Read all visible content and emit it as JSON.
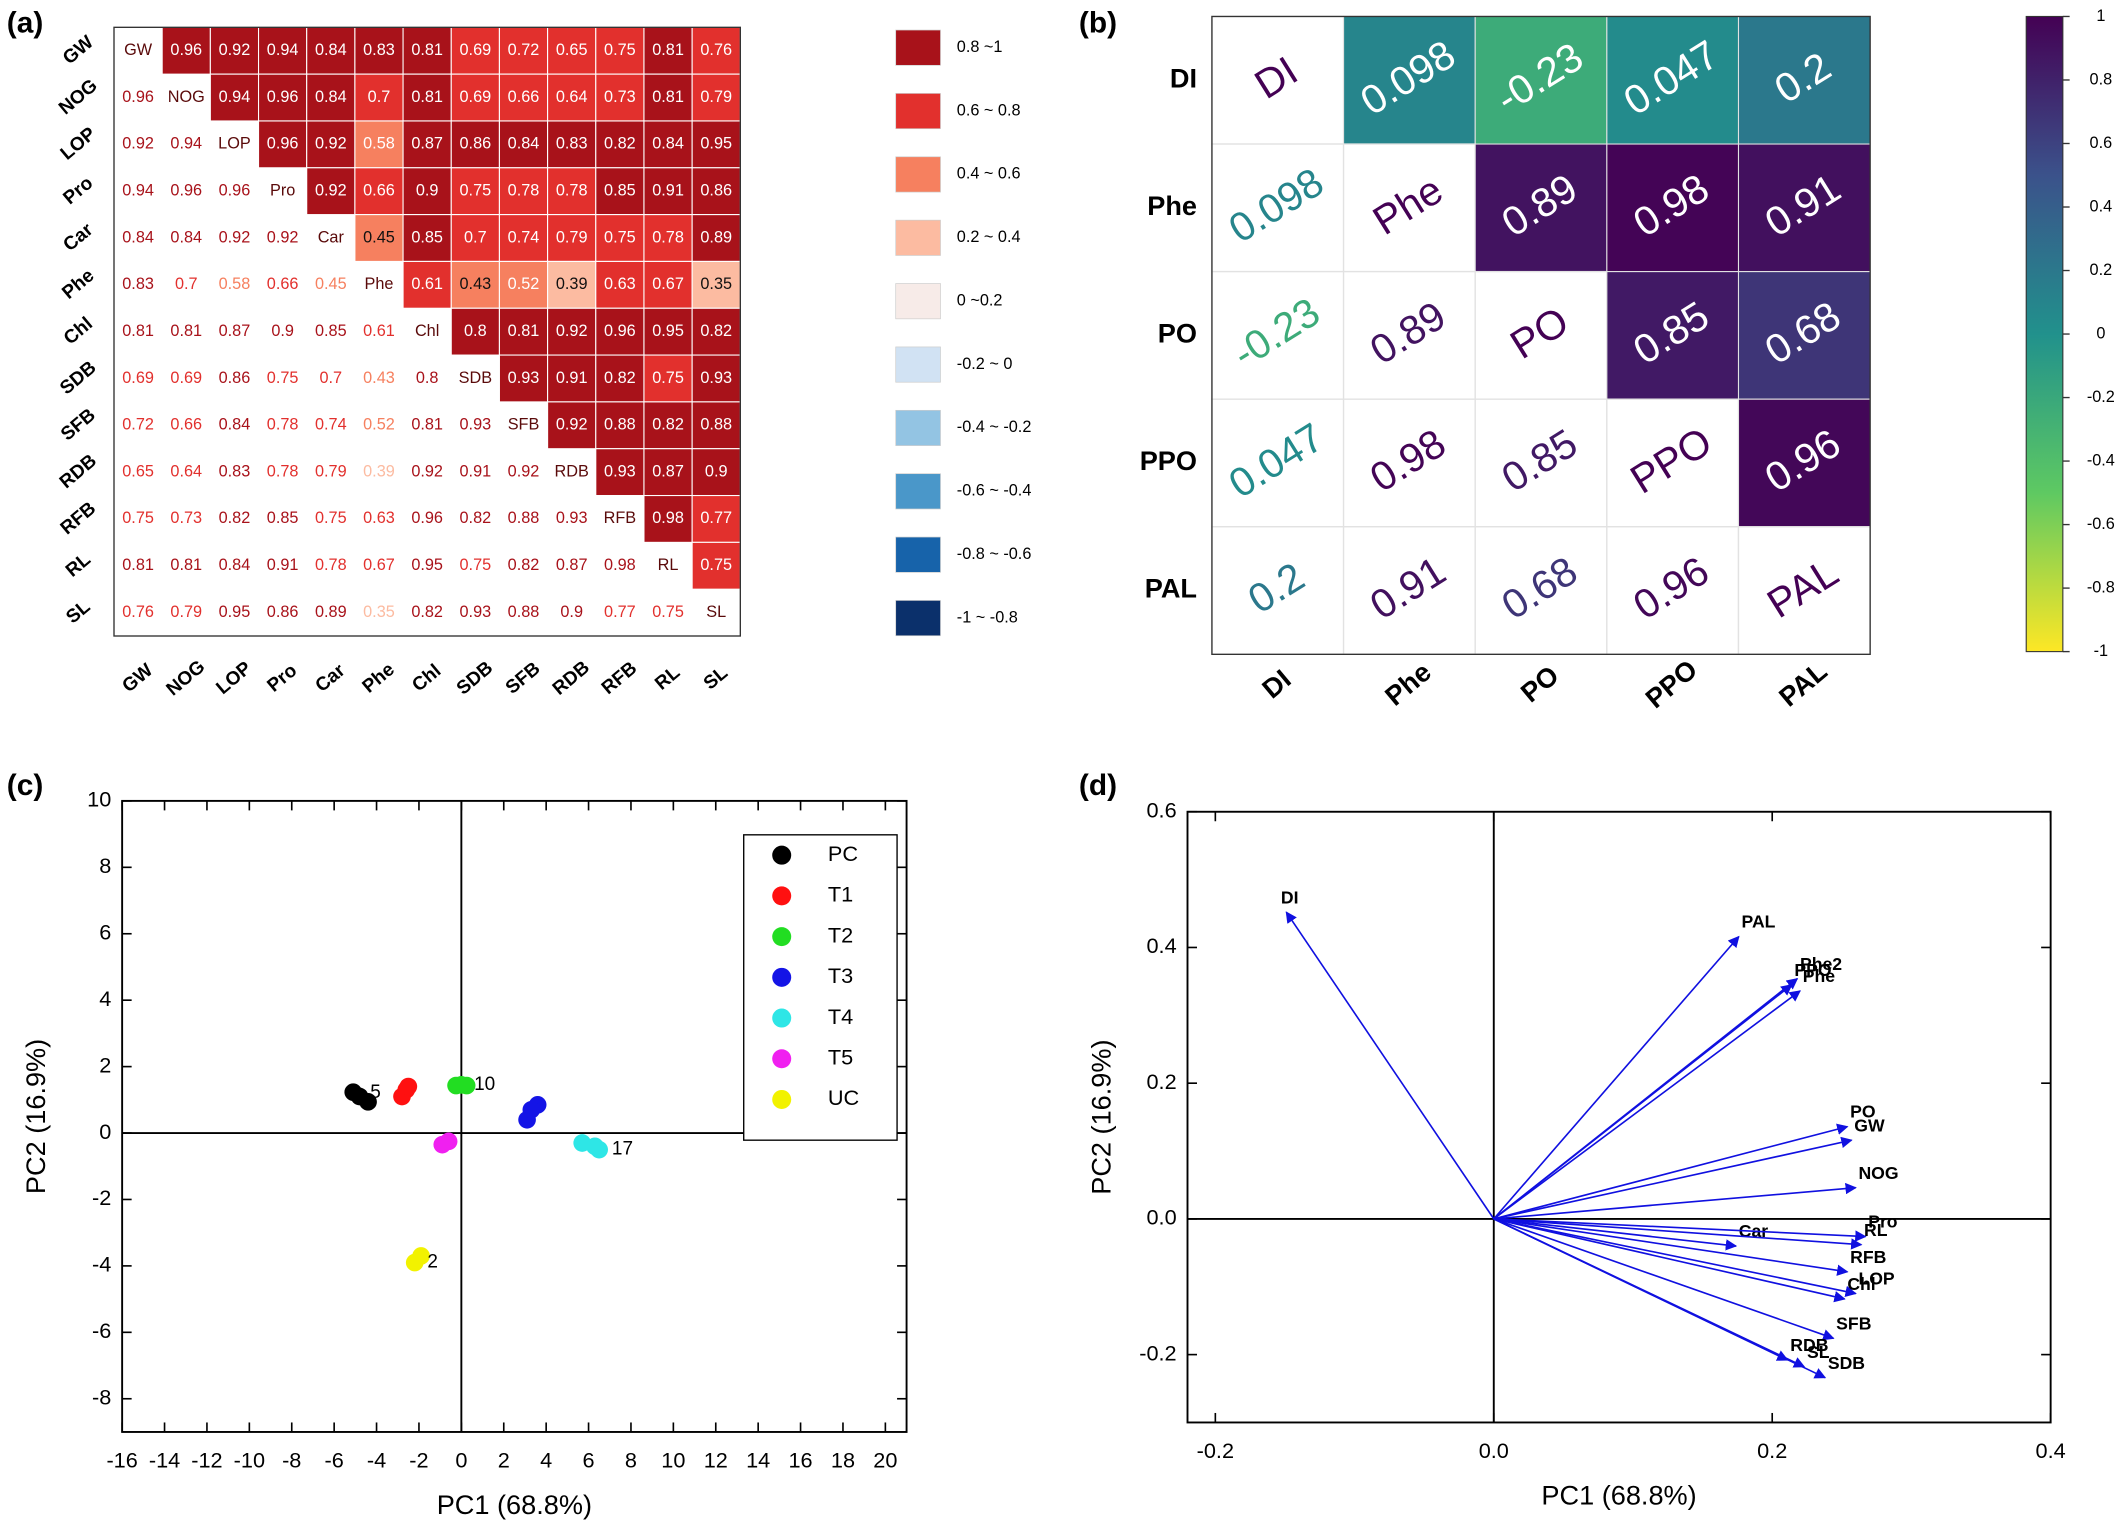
{
  "chart_data": [
    {
      "type": "heatmap",
      "panel_label": "(a)",
      "categories": [
        "GW",
        "NOG",
        "LOP",
        "Pro",
        "Car",
        "Phe",
        "Chl",
        "SDB",
        "SFB",
        "RDB",
        "RFB",
        "RL",
        "SL"
      ],
      "matrix": [
        [
          null,
          0.96,
          0.92,
          0.94,
          0.84,
          0.83,
          0.81,
          0.69,
          0.72,
          0.65,
          0.75,
          0.81,
          0.76
        ],
        [
          0.96,
          null,
          0.94,
          0.96,
          0.84,
          0.7,
          0.81,
          0.69,
          0.66,
          0.64,
          0.73,
          0.81,
          0.79
        ],
        [
          0.92,
          0.94,
          null,
          0.96,
          0.92,
          0.58,
          0.87,
          0.86,
          0.84,
          0.83,
          0.82,
          0.84,
          0.95
        ],
        [
          0.94,
          0.96,
          0.96,
          null,
          0.92,
          0.66,
          0.9,
          0.75,
          0.78,
          0.78,
          0.85,
          0.91,
          0.86
        ],
        [
          0.84,
          0.84,
          0.92,
          0.92,
          null,
          0.45,
          0.85,
          0.7,
          0.74,
          0.79,
          0.75,
          0.78,
          0.89
        ],
        [
          0.83,
          0.7,
          0.58,
          0.66,
          0.45,
          null,
          0.61,
          0.43,
          0.52,
          0.39,
          0.63,
          0.67,
          0.35
        ],
        [
          0.81,
          0.81,
          0.87,
          0.9,
          0.85,
          0.61,
          null,
          0.8,
          0.81,
          0.92,
          0.96,
          0.95,
          0.82
        ],
        [
          0.69,
          0.69,
          0.86,
          0.75,
          0.7,
          0.43,
          0.8,
          null,
          0.93,
          0.91,
          0.82,
          0.75,
          0.93
        ],
        [
          0.72,
          0.66,
          0.84,
          0.78,
          0.74,
          0.52,
          0.81,
          0.93,
          null,
          0.92,
          0.88,
          0.82,
          0.88
        ],
        [
          0.65,
          0.64,
          0.83,
          0.78,
          0.79,
          0.39,
          0.92,
          0.91,
          0.92,
          null,
          0.93,
          0.87,
          0.9
        ],
        [
          0.75,
          0.73,
          0.82,
          0.85,
          0.75,
          0.63,
          0.96,
          0.82,
          0.88,
          0.93,
          null,
          0.98,
          0.77
        ],
        [
          0.81,
          0.81,
          0.84,
          0.91,
          0.78,
          0.67,
          0.95,
          0.75,
          0.82,
          0.87,
          0.98,
          null,
          0.75
        ],
        [
          0.76,
          0.79,
          0.95,
          0.86,
          0.89,
          0.35,
          0.82,
          0.93,
          0.88,
          0.9,
          0.77,
          0.75,
          null
        ]
      ],
      "bins": [
        {
          "label": "0.8 ~1",
          "min": 0.8,
          "max": 1,
          "color": "#a8121a"
        },
        {
          "label": "0.6 ~ 0.8",
          "min": 0.6,
          "max": 0.8,
          "color": "#e2302d"
        },
        {
          "label": "0.4 ~ 0.6",
          "min": 0.4,
          "max": 0.6,
          "color": "#f6805f"
        },
        {
          "label": "0.2 ~ 0.4",
          "min": 0.2,
          "max": 0.4,
          "color": "#fcbba1"
        },
        {
          "label": "0    ~0.2",
          "min": 0,
          "max": 0.2,
          "color": "#f7ebe8"
        },
        {
          "label": "-0.2 ~ 0",
          "min": -0.2,
          "max": 0,
          "color": "#d1e2f3"
        },
        {
          "label": "-0.4 ~ -0.2",
          "min": -0.4,
          "max": -0.2,
          "color": "#93c4e3"
        },
        {
          "label": "-0.6 ~ -0.4",
          "min": -0.6,
          "max": -0.4,
          "color": "#4a97c9"
        },
        {
          "label": "-0.8 ~ -0.6",
          "min": -0.8,
          "max": -0.6,
          "color": "#1763aa"
        },
        {
          "label": "-1   ~ -0.8",
          "min": -1,
          "max": -0.8,
          "color": "#0b306b"
        }
      ]
    },
    {
      "type": "heatmap",
      "panel_label": "(b)",
      "categories": [
        "DI",
        "Phe",
        "PO",
        "PPO",
        "PAL"
      ],
      "matrix": [
        [
          null,
          0.098,
          -0.23,
          0.047,
          0.2
        ],
        [
          0.098,
          null,
          0.89,
          0.98,
          0.91
        ],
        [
          -0.23,
          0.89,
          null,
          0.85,
          0.68
        ],
        [
          0.047,
          0.98,
          0.85,
          null,
          0.96
        ],
        [
          0.2,
          0.91,
          0.68,
          0.96,
          null
        ]
      ],
      "clim": [
        -1,
        1
      ],
      "colormap": [
        "#fde725",
        "#5ec962",
        "#21918c",
        "#3b528b",
        "#440154"
      ],
      "colorbar_ticks": [
        1,
        0.8,
        0.6,
        0.4,
        0.2,
        0,
        -0.2,
        -0.4,
        -0.6,
        -0.8,
        -1
      ]
    },
    {
      "type": "scatter",
      "panel_label": "(c)",
      "xlabel": "PC1 (68.8%)",
      "ylabel": "PC2 (16.9%)",
      "xlim": [
        -16,
        21
      ],
      "ylim": [
        -9,
        10
      ],
      "xticks": [
        -16,
        -14,
        -12,
        -10,
        -8,
        -6,
        -4,
        -2,
        0,
        2,
        4,
        6,
        8,
        10,
        12,
        14,
        16,
        18,
        20
      ],
      "yticks": [
        -8,
        -6,
        -4,
        -2,
        0,
        2,
        4,
        6,
        8,
        10
      ],
      "zero_lines": true,
      "legend": "upper right",
      "series": [
        {
          "name": "PC",
          "color": "#000000",
          "x": [
            -5.1,
            -4.4,
            -4.8
          ],
          "y": [
            1.23,
            0.94,
            1.1
          ]
        },
        {
          "name": "T1",
          "color": "#ff1010",
          "x": [
            -2.6,
            -2.8,
            -2.5
          ],
          "y": [
            1.3,
            1.1,
            1.4
          ]
        },
        {
          "name": "T2",
          "color": "#22dd22",
          "x": [
            -0.25,
            0.25,
            0
          ],
          "y": [
            1.43,
            1.43,
            1.45
          ]
        },
        {
          "name": "T3",
          "color": "#1414e6",
          "x": [
            3.1,
            3.6,
            3.3
          ],
          "y": [
            0.4,
            0.85,
            0.7
          ]
        },
        {
          "name": "T4",
          "color": "#2ee6e6",
          "x": [
            5.7,
            6.3,
            6.5
          ],
          "y": [
            -0.3,
            -0.4,
            -0.5
          ]
        },
        {
          "name": "T5",
          "color": "#f020f0",
          "x": [
            -0.9,
            -0.6
          ],
          "y": [
            -0.35,
            -0.25
          ]
        },
        {
          "name": "UC",
          "color": "#f2f200",
          "x": [
            -2.2,
            -1.9
          ],
          "y": [
            -3.9,
            -3.7
          ]
        }
      ],
      "annotations": [
        {
          "text": "5",
          "x": -4.3,
          "y": 1.2
        },
        {
          "text": "10",
          "x": 0.6,
          "y": 1.45
        },
        {
          "text": "17",
          "x": 7.1,
          "y": -0.5
        },
        {
          "text": "2",
          "x": -1.6,
          "y": -3.9
        }
      ]
    },
    {
      "type": "biplot",
      "panel_label": "(d)",
      "xlabel": "PC1 (68.8%)",
      "ylabel": "PC2 (16.9%)",
      "xlim": [
        -0.22,
        0.4
      ],
      "ylim": [
        -0.3,
        0.6
      ],
      "xticks": [
        -0.2,
        {
          "value": 0,
          "label": "0.0"
        },
        0.2,
        0.4
      ],
      "yticks": [
        -0.2,
        {
          "value": 0,
          "label": "0.0"
        },
        0.2,
        0.4,
        0.6
      ],
      "zero_lines": true,
      "color": "#1010e0",
      "vectors": [
        {
          "name": "DI",
          "x": -0.149,
          "y": 0.452
        },
        {
          "name": "PAL",
          "x": 0.176,
          "y": 0.416
        },
        {
          "name": "Phe2",
          "x": 0.218,
          "y": 0.354
        },
        {
          "name": "PPO",
          "x": 0.214,
          "y": 0.345
        },
        {
          "name": "Phe",
          "x": 0.22,
          "y": 0.336
        },
        {
          "name": "PO",
          "x": 0.254,
          "y": 0.136
        },
        {
          "name": "GW",
          "x": 0.257,
          "y": 0.116
        },
        {
          "name": "NOG",
          "x": 0.26,
          "y": 0.046
        },
        {
          "name": "Car",
          "x": 0.174,
          "y": -0.04
        },
        {
          "name": "Pro",
          "x": 0.267,
          "y": -0.026
        },
        {
          "name": "RL",
          "x": 0.264,
          "y": -0.038
        },
        {
          "name": "RFB",
          "x": 0.254,
          "y": -0.078
        },
        {
          "name": "LOP",
          "x": 0.26,
          "y": -0.11
        },
        {
          "name": "Chl",
          "x": 0.252,
          "y": -0.118
        },
        {
          "name": "SFB",
          "x": 0.244,
          "y": -0.176
        },
        {
          "name": "RDB",
          "x": 0.211,
          "y": -0.208
        },
        {
          "name": "SL",
          "x": 0.223,
          "y": -0.218
        },
        {
          "name": "SDB",
          "x": 0.238,
          "y": -0.234
        }
      ]
    }
  ]
}
